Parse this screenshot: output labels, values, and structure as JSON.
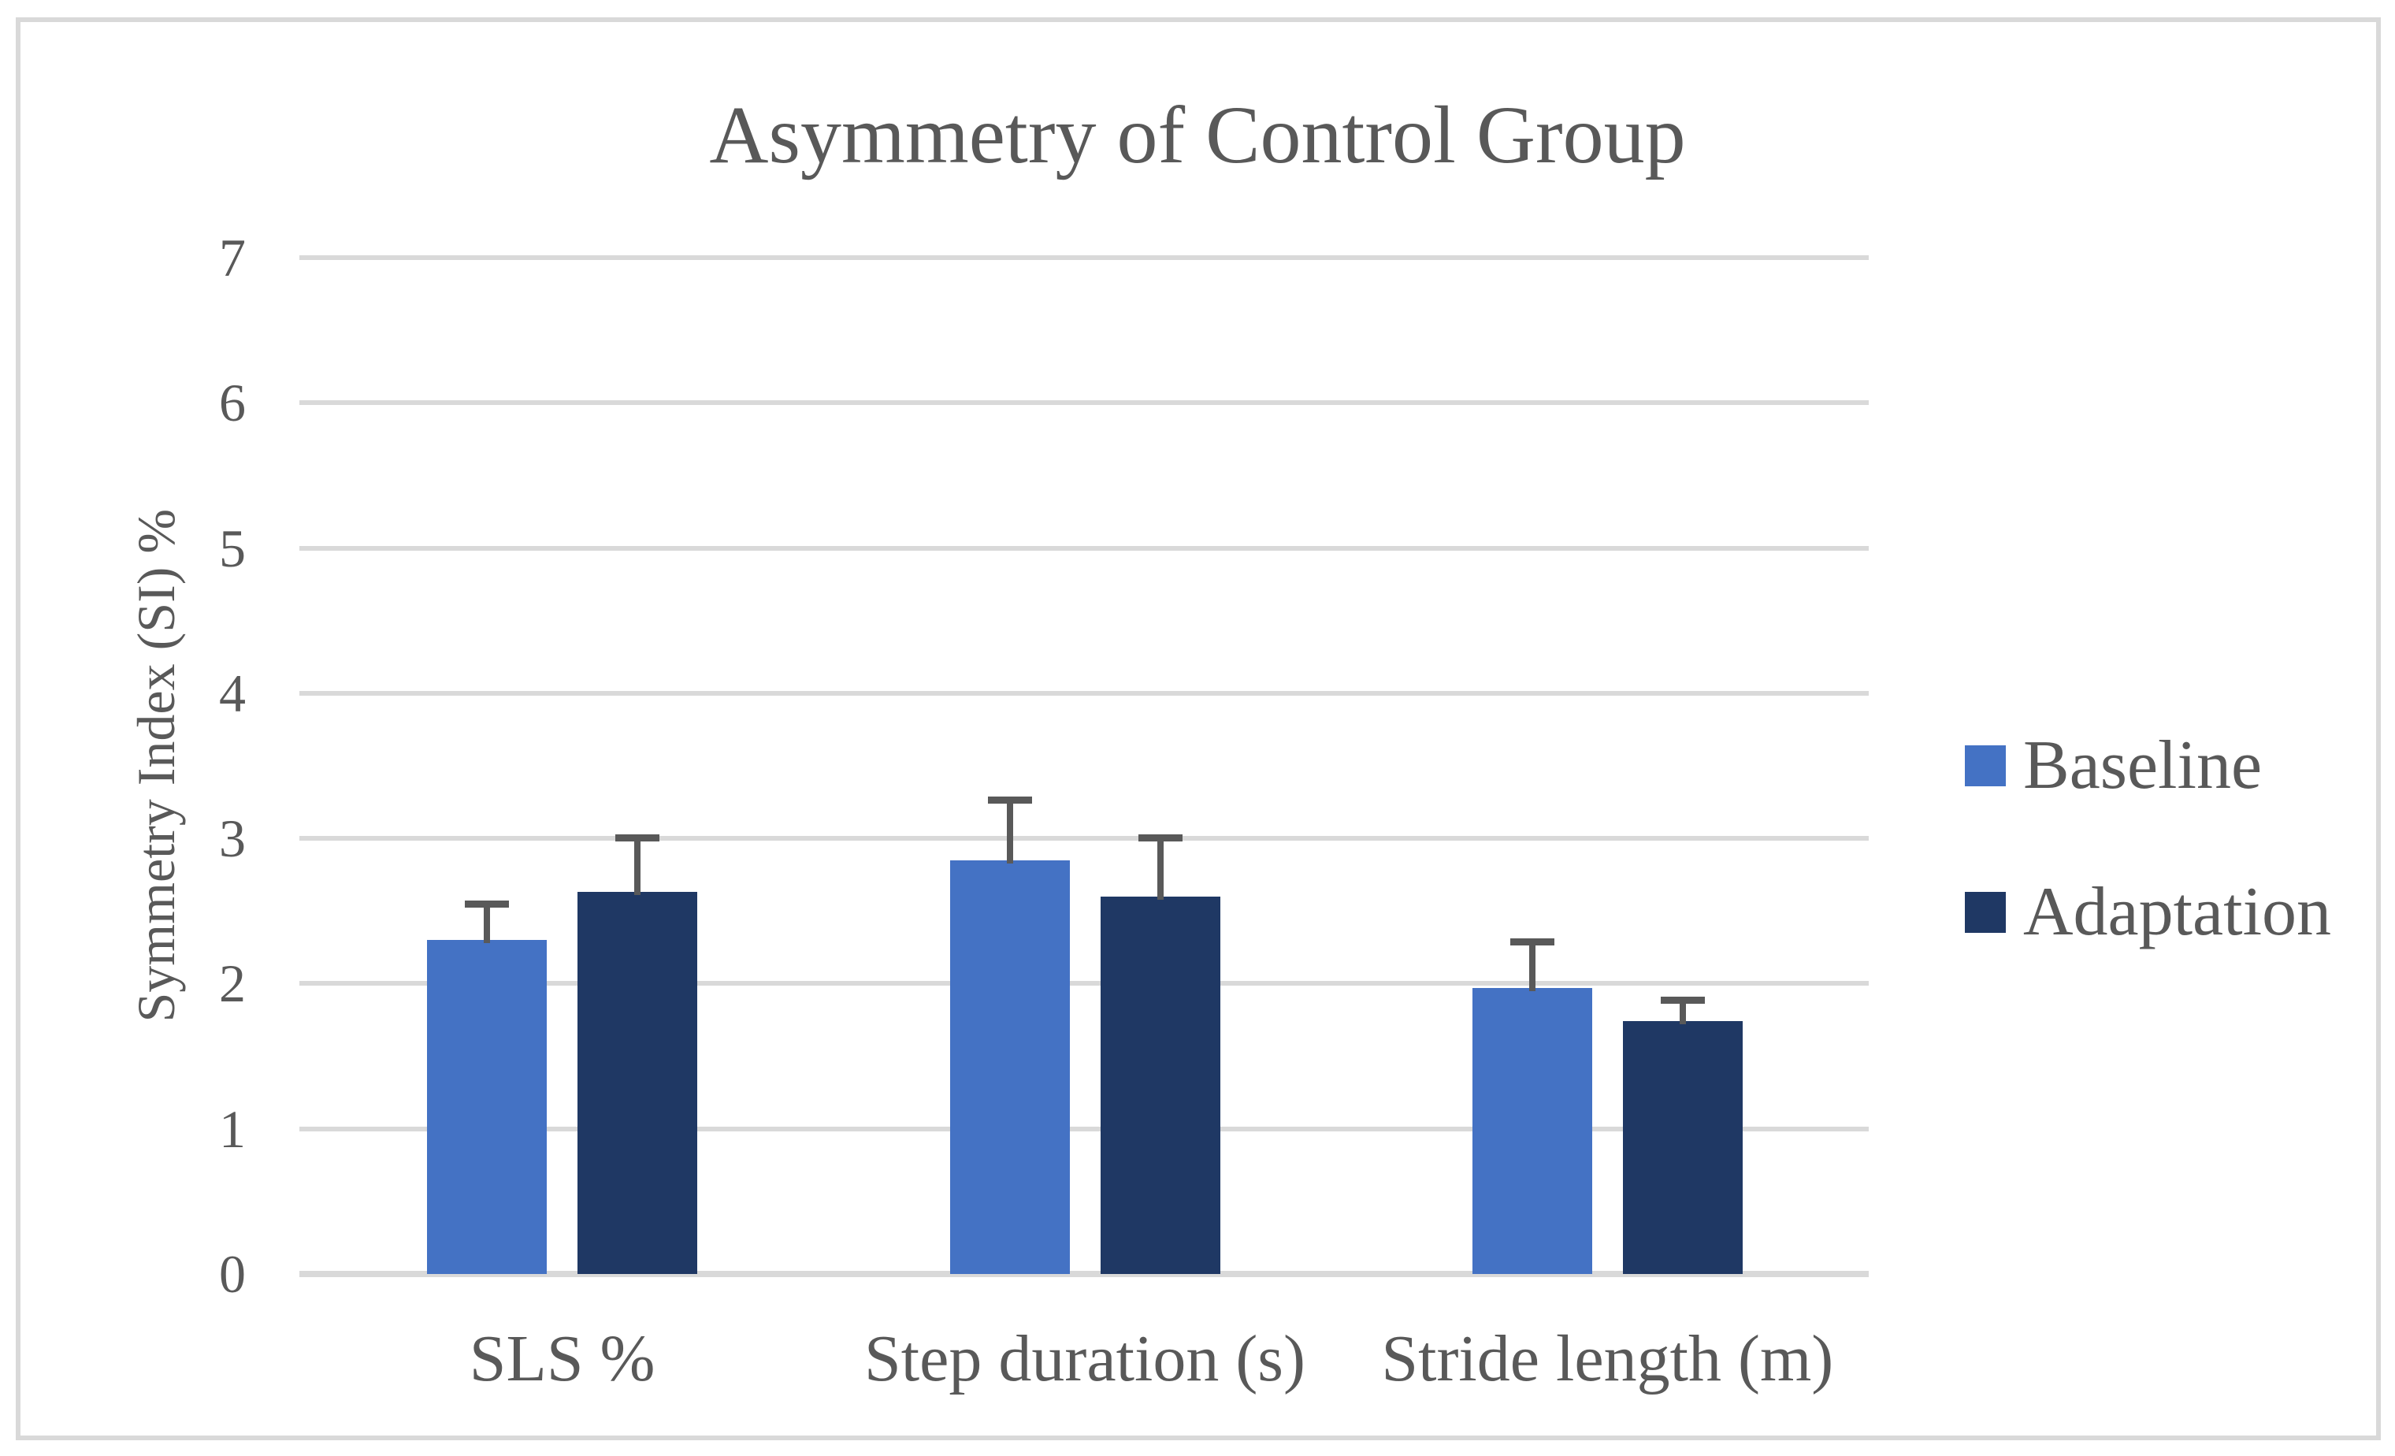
{
  "chart_data": {
    "type": "bar",
    "title": "Asymmetry of Control Group",
    "ylabel": "Symmetry Index (SI) %",
    "xlabel": "",
    "categories": [
      "SLS %",
      "Step duration (s)",
      "Stride length (m)"
    ],
    "series": [
      {
        "name": "Baseline",
        "color": "#4472C4",
        "values": [
          2.3,
          2.85,
          1.97
        ],
        "errors_up": [
          0.27,
          0.44,
          0.34
        ]
      },
      {
        "name": "Adaptation",
        "color": "#1F3864",
        "values": [
          2.63,
          2.6,
          1.74
        ],
        "errors_up": [
          0.4,
          0.43,
          0.17
        ]
      }
    ],
    "ylim": [
      0,
      7
    ],
    "yticks": [
      0,
      1,
      2,
      3,
      4,
      5,
      6,
      7
    ],
    "grid": "horizontal",
    "legend_position": "right",
    "has_error_bars": true
  },
  "style": {
    "background": "#FFFFFF",
    "text_color": "#595959",
    "gridline_color": "#D9D9D9",
    "frame_border_color": "#D9D9D9",
    "error_bar_color": "#595959",
    "baseline_series_color": "#4472C4",
    "adaptation_series_color": "#1F3864"
  }
}
